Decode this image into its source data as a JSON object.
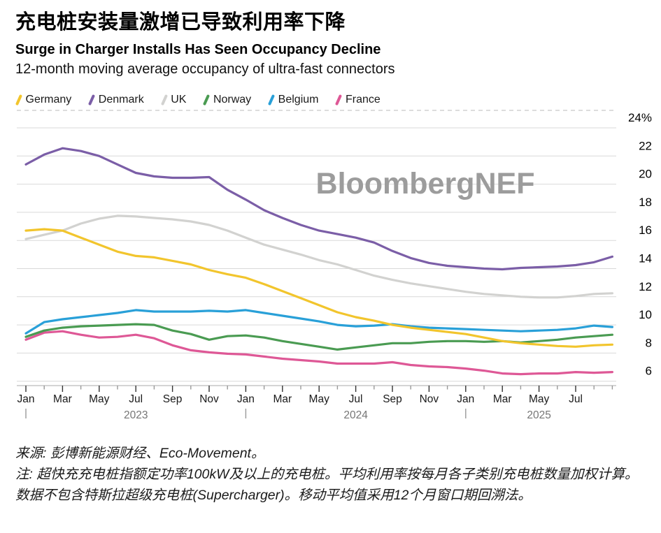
{
  "title_zh": "充电桩安装量激增已导致利用率下降",
  "title_en": "Surge in Charger Installs Has Seen Occupancy Decline",
  "subtitle": "12-month moving average occupancy of ultra-fast connectors",
  "watermark": "BloombergNEF",
  "legend": {
    "items": [
      {
        "label": "Germany",
        "color": "#F2C52D"
      },
      {
        "label": "Denmark",
        "color": "#7B5EA7"
      },
      {
        "label": "UK",
        "color": "#D2D2D0"
      },
      {
        "label": "Norway",
        "color": "#4A9B52"
      },
      {
        "label": "Belgium",
        "color": "#29A0D8"
      },
      {
        "label": "France",
        "color": "#DE5896"
      }
    ]
  },
  "footer": {
    "source": "来源: 彭博新能源财经、Eco-Movement。",
    "note": "注: 超快充充电桩指额定功率100kW及以上的充电桩。平均利用率按每月各子类别充电桩数量加权计算。数据不包含特斯拉超级充电桩(Supercharger)。移动平均值采用12个月窗口期回溯法。"
  },
  "chart_data": {
    "type": "line",
    "unit": "%",
    "grid": true,
    "legend_position": "top",
    "y_axis": {
      "min": 6,
      "max": 24,
      "step": 2,
      "top_label": "24%",
      "side": "right"
    },
    "x_months": [
      "2023-01",
      "2023-02",
      "2023-03",
      "2023-04",
      "2023-05",
      "2023-06",
      "2023-07",
      "2023-08",
      "2023-09",
      "2023-10",
      "2023-11",
      "2023-12",
      "2024-01",
      "2024-02",
      "2024-03",
      "2024-04",
      "2024-05",
      "2024-06",
      "2024-07",
      "2024-08",
      "2024-09",
      "2024-10",
      "2024-11",
      "2024-12",
      "2025-01",
      "2025-02",
      "2025-03",
      "2025-04",
      "2025-05",
      "2025-06",
      "2025-07",
      "2025-08",
      "2025-09"
    ],
    "tick_month_labels": [
      "Jan",
      "Mar",
      "May",
      "Jul",
      "Sep",
      "Nov",
      "Jan",
      "Mar",
      "May",
      "Jul",
      "Sep",
      "Nov",
      "Jan",
      "Mar",
      "May",
      "Jul"
    ],
    "years": [
      {
        "label": "2023",
        "start_index": 0,
        "center_index": 6
      },
      {
        "label": "2024",
        "start_index": 12,
        "center_index": 18
      },
      {
        "label": "2025",
        "start_index": 24,
        "center_index": 28
      }
    ],
    "series": [
      {
        "name": "Germany",
        "color": "#F2C52D",
        "values": [
          16.7,
          16.8,
          16.7,
          16.2,
          15.7,
          15.2,
          14.9,
          14.8,
          14.55,
          14.3,
          13.9,
          13.6,
          13.35,
          12.9,
          12.4,
          11.9,
          11.4,
          10.9,
          10.55,
          10.3,
          10.0,
          9.8,
          9.65,
          9.5,
          9.35,
          9.1,
          8.85,
          8.7,
          8.6,
          8.5,
          8.45,
          8.55,
          8.6
        ]
      },
      {
        "name": "Denmark",
        "color": "#7B5EA7",
        "values": [
          21.4,
          22.1,
          22.55,
          22.35,
          22.0,
          21.4,
          20.8,
          20.55,
          20.45,
          20.45,
          20.5,
          19.6,
          18.9,
          18.15,
          17.6,
          17.1,
          16.7,
          16.45,
          16.2,
          15.85,
          15.25,
          14.75,
          14.4,
          14.2,
          14.1,
          14.0,
          13.95,
          14.05,
          14.1,
          14.15,
          14.25,
          14.45,
          14.85
        ]
      },
      {
        "name": "UK",
        "color": "#D2D2D0",
        "values": [
          16.1,
          16.4,
          16.7,
          17.2,
          17.55,
          17.75,
          17.7,
          17.6,
          17.5,
          17.35,
          17.1,
          16.7,
          16.2,
          15.7,
          15.35,
          15.0,
          14.6,
          14.3,
          13.9,
          13.5,
          13.2,
          12.95,
          12.75,
          12.55,
          12.35,
          12.2,
          12.1,
          12.0,
          11.95,
          11.95,
          12.05,
          12.2,
          12.25
        ]
      },
      {
        "name": "Norway",
        "color": "#4A9B52",
        "values": [
          9.15,
          9.6,
          9.8,
          9.9,
          9.95,
          10.0,
          10.05,
          10.0,
          9.6,
          9.35,
          8.95,
          9.2,
          9.25,
          9.1,
          8.85,
          8.65,
          8.45,
          8.25,
          8.4,
          8.55,
          8.7,
          8.7,
          8.8,
          8.85,
          8.85,
          8.8,
          8.85,
          8.75,
          8.85,
          8.95,
          9.1,
          9.2,
          9.3
        ]
      },
      {
        "name": "Belgium",
        "color": "#29A0D8",
        "values": [
          9.4,
          10.2,
          10.4,
          10.55,
          10.7,
          10.85,
          11.05,
          10.95,
          10.95,
          10.95,
          11.0,
          10.95,
          11.05,
          10.85,
          10.65,
          10.45,
          10.25,
          10.0,
          9.9,
          9.95,
          10.05,
          9.9,
          9.8,
          9.75,
          9.7,
          9.65,
          9.6,
          9.55,
          9.6,
          9.65,
          9.75,
          9.95,
          9.85
        ]
      },
      {
        "name": "France",
        "color": "#DE5896",
        "values": [
          8.95,
          9.45,
          9.55,
          9.3,
          9.1,
          9.15,
          9.3,
          9.05,
          8.55,
          8.2,
          8.05,
          7.95,
          7.9,
          7.75,
          7.6,
          7.5,
          7.4,
          7.25,
          7.25,
          7.25,
          7.35,
          7.15,
          7.05,
          7.0,
          6.9,
          6.75,
          6.55,
          6.5,
          6.55,
          6.55,
          6.65,
          6.6,
          6.65
        ]
      }
    ]
  }
}
